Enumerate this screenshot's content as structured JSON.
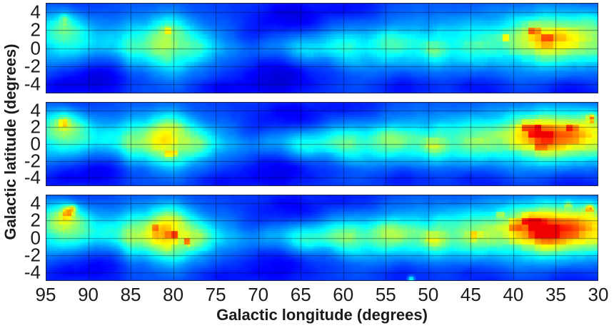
{
  "figure": {
    "background": "#ffffff",
    "text_color": "#1b1b1b"
  },
  "chart_data": {
    "type": "heatmap",
    "title": "",
    "xlabel": "Galactic longitude (degrees)",
    "ylabel": "Galactic latitude (degrees)",
    "x_range": [
      95,
      30
    ],
    "x_ticks": [
      95,
      90,
      85,
      80,
      75,
      70,
      65,
      60,
      55,
      50,
      45,
      40,
      35,
      30
    ],
    "y_range": [
      -5,
      5
    ],
    "y_ticks": [
      4,
      2,
      0,
      -2,
      -4
    ],
    "grid": {
      "show": true,
      "x_step": 5,
      "y_step": 2,
      "color": "rgba(5,10,40,0.45)"
    },
    "border_color": "#23233a",
    "colormap": "jet",
    "colormap_stops": [
      [
        0.0,
        "#000083"
      ],
      [
        0.125,
        "#0000ff"
      ],
      [
        0.375,
        "#00ffff"
      ],
      [
        0.625,
        "#ffff00"
      ],
      [
        0.875,
        "#ff0000"
      ],
      [
        1.0,
        "#800000"
      ]
    ],
    "noise": {
      "seed": 7,
      "octaves": 5
    },
    "longitude_profile": {
      "l": [
        95,
        93,
        91,
        89,
        87,
        85,
        83,
        81,
        79,
        77,
        75,
        73,
        71,
        69,
        67,
        65,
        63,
        61,
        59,
        57,
        55,
        53,
        51,
        49,
        47,
        45,
        43,
        41,
        39,
        37,
        35,
        33,
        31,
        30
      ],
      "v": [
        0.5,
        0.58,
        0.42,
        0.33,
        0.38,
        0.45,
        0.6,
        0.8,
        0.72,
        0.55,
        0.35,
        0.26,
        0.22,
        0.24,
        0.28,
        0.34,
        0.38,
        0.45,
        0.52,
        0.5,
        0.52,
        0.48,
        0.55,
        0.6,
        0.52,
        0.58,
        0.65,
        0.72,
        0.85,
        0.92,
        0.85,
        0.78,
        0.72,
        0.7
      ]
    },
    "band_center": {
      "l": [
        95,
        90,
        85,
        80,
        75,
        70,
        65,
        60,
        55,
        50,
        45,
        40,
        35,
        30
      ],
      "v": [
        1.2,
        1.0,
        0.5,
        0.4,
        0.1,
        0.0,
        0.0,
        0.1,
        0.3,
        0.3,
        0.5,
        0.8,
        0.7,
        0.5
      ]
    },
    "band_width": {
      "l": [
        95,
        90,
        85,
        80,
        75,
        70,
        65,
        60,
        55,
        50,
        45,
        40,
        35,
        30
      ],
      "v": [
        1.9,
        1.7,
        1.9,
        2.2,
        1.7,
        1.5,
        1.5,
        1.7,
        1.8,
        1.8,
        2.0,
        2.3,
        2.3,
        2.1
      ]
    },
    "hotspots": [
      [
        80.8,
        0.7,
        2.0,
        1.5,
        0.32
      ],
      [
        76.8,
        0.0,
        1.3,
        1.1,
        0.18
      ],
      [
        92.8,
        2.6,
        1.6,
        1.1,
        0.28
      ],
      [
        85.0,
        0.0,
        0.8,
        2.2,
        0.15
      ],
      [
        37.3,
        1.2,
        2.8,
        1.5,
        0.38
      ],
      [
        33.0,
        1.2,
        2.0,
        1.5,
        0.22
      ],
      [
        30.8,
        2.8,
        1.3,
        1.2,
        0.18
      ],
      [
        49.4,
        -0.3,
        0.9,
        0.7,
        0.22
      ],
      [
        59.8,
        0.1,
        1.4,
        1.0,
        0.16
      ],
      [
        44.0,
        0.4,
        1.6,
        1.2,
        0.16
      ],
      [
        54.8,
        0.4,
        1.6,
        1.1,
        0.14
      ],
      [
        64.8,
        -0.4,
        1.2,
        0.9,
        0.12
      ]
    ],
    "voids": [
      [
        67.5,
        -3.2,
        3.5,
        1.6,
        0.15
      ],
      [
        66.0,
        3.8,
        3.0,
        1.4,
        0.13
      ],
      [
        88.5,
        -3.2,
        2.6,
        1.4,
        0.13
      ],
      [
        93.5,
        -4.2,
        2.0,
        1.0,
        0.1
      ],
      [
        74.5,
        -4.6,
        2.2,
        0.9,
        0.09
      ],
      [
        52.5,
        -4.2,
        2.6,
        1.0,
        0.08
      ],
      [
        58.5,
        4.4,
        2.2,
        0.9,
        0.07
      ],
      [
        44.0,
        -4.3,
        2.2,
        0.9,
        0.07
      ],
      [
        33.5,
        -4.4,
        2.0,
        0.9,
        0.08
      ],
      [
        71.0,
        1.5,
        2.0,
        1.2,
        0.08
      ]
    ],
    "panels": [
      {
        "id": "top",
        "gain": 0.78,
        "void_gain": 1.25,
        "spots": [
          [
            37.6,
            1.8,
            0.4,
            0.45
          ],
          [
            36.0,
            1.0,
            0.35,
            0.4
          ],
          [
            80.8,
            1.8,
            0.3,
            0.28
          ],
          [
            34.5,
            1.5,
            0.3,
            0.3
          ],
          [
            40.8,
            1.2,
            0.3,
            0.28
          ],
          [
            92.8,
            3.2,
            0.35,
            0.22
          ]
        ]
      },
      {
        "id": "middle",
        "gain": 1.0,
        "void_gain": 1.0,
        "spots": [
          [
            37.4,
            1.5,
            0.45,
            0.55
          ],
          [
            35.9,
            1.1,
            0.35,
            0.5
          ],
          [
            38.8,
            2.1,
            0.3,
            0.42
          ],
          [
            30.8,
            3.1,
            0.28,
            0.6
          ],
          [
            80.2,
            -1.1,
            0.3,
            0.45
          ],
          [
            92.9,
            2.6,
            0.4,
            0.28
          ],
          [
            33.1,
            1.9,
            0.3,
            0.35
          ],
          [
            36.8,
            -0.4,
            0.3,
            0.35
          ]
        ]
      },
      {
        "id": "bottom",
        "gain": 1.1,
        "void_gain": 0.9,
        "spots": [
          [
            37.1,
            1.1,
            0.55,
            0.6
          ],
          [
            38.2,
            1.9,
            0.4,
            0.5
          ],
          [
            35.4,
            0.7,
            0.35,
            0.5
          ],
          [
            39.8,
            1.4,
            0.35,
            0.45
          ],
          [
            31.0,
            3.4,
            0.3,
            0.5
          ],
          [
            92.4,
            3.0,
            0.45,
            0.45
          ],
          [
            80.1,
            0.2,
            0.35,
            0.4
          ],
          [
            78.3,
            -0.4,
            0.3,
            0.38
          ],
          [
            82.0,
            0.9,
            0.3,
            0.3
          ],
          [
            41.5,
            2.6,
            0.3,
            0.35
          ],
          [
            33.5,
            3.8,
            0.3,
            0.3
          ],
          [
            52.0,
            -4.8,
            0.25,
            0.45
          ],
          [
            44.5,
            0.1,
            0.3,
            0.3
          ],
          [
            91.8,
            3.4,
            0.3,
            0.35
          ]
        ]
      }
    ]
  }
}
